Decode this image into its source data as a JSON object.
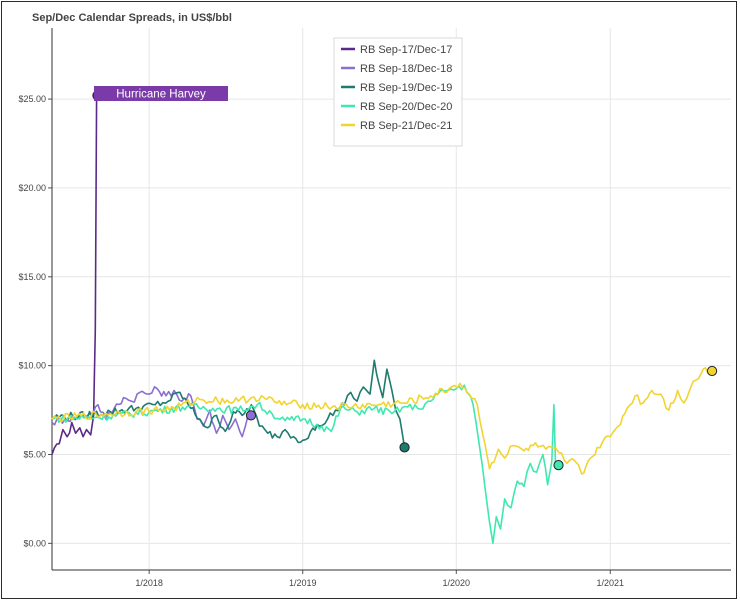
{
  "chart_data": {
    "type": "line",
    "title": "Sep/Dec Calendar Spreads, in US$/bbl",
    "xlabel": "",
    "ylabel": "",
    "ylim": [
      -1.5,
      29
    ],
    "xlim": [
      "2017-05-15",
      "2021-10-15"
    ],
    "yticks": [
      0,
      5,
      10,
      15,
      20,
      25
    ],
    "ytick_labels": [
      "$0.00",
      "$5.00",
      "$10.00",
      "$15.00",
      "$20.00",
      "$25.00"
    ],
    "xticks": [
      "2018-01-01",
      "2019-01-01",
      "2020-01-01",
      "2021-01-01"
    ],
    "xtick_labels": [
      "1/2018",
      "1/2019",
      "1/2020",
      "1/2021"
    ],
    "grid": true,
    "legend_position": "top-center",
    "series": [
      {
        "name": "RB Sep-17/Dec-17",
        "color": "#5b2a86",
        "points": [
          [
            "2017-05-15",
            5.0
          ],
          [
            "2017-06-01",
            5.6
          ],
          [
            "2017-06-10",
            6.4
          ],
          [
            "2017-06-20",
            6.0
          ],
          [
            "2017-07-01",
            6.8
          ],
          [
            "2017-07-10",
            6.2
          ],
          [
            "2017-07-20",
            6.5
          ],
          [
            "2017-07-28",
            6.0
          ],
          [
            "2017-08-05",
            6.4
          ],
          [
            "2017-08-15",
            6.1
          ],
          [
            "2017-08-22",
            7.2
          ],
          [
            "2017-08-26",
            12.0
          ],
          [
            "2017-08-29",
            25.2
          ],
          [
            "2017-08-31",
            25.2
          ]
        ],
        "end_marker": [
          "2017-08-31",
          25.2
        ]
      },
      {
        "name": "RB Sep-18/Dec-18",
        "color": "#8b6fd1",
        "points": [
          [
            "2017-05-15",
            6.8
          ],
          [
            "2017-06-15",
            7.0
          ],
          [
            "2017-07-15",
            7.1
          ],
          [
            "2017-08-15",
            7.3
          ],
          [
            "2017-09-01",
            7.8
          ],
          [
            "2017-09-20",
            7.0
          ],
          [
            "2017-10-10",
            7.6
          ],
          [
            "2017-11-01",
            8.2
          ],
          [
            "2017-11-20",
            8.0
          ],
          [
            "2017-12-10",
            8.5
          ],
          [
            "2018-01-01",
            8.4
          ],
          [
            "2018-01-20",
            8.7
          ],
          [
            "2018-02-10",
            8.3
          ],
          [
            "2018-03-01",
            8.6
          ],
          [
            "2018-03-20",
            8.0
          ],
          [
            "2018-04-10",
            8.3
          ],
          [
            "2018-04-25",
            7.0
          ],
          [
            "2018-05-10",
            6.6
          ],
          [
            "2018-05-25",
            7.5
          ],
          [
            "2018-06-10",
            6.2
          ],
          [
            "2018-06-25",
            7.2
          ],
          [
            "2018-07-10",
            6.4
          ],
          [
            "2018-07-25",
            7.0
          ],
          [
            "2018-08-10",
            6.0
          ],
          [
            "2018-08-25",
            7.3
          ],
          [
            "2018-08-31",
            7.2
          ]
        ],
        "end_marker": [
          "2018-08-31",
          7.2
        ]
      },
      {
        "name": "RB Sep-19/Dec-19",
        "color": "#1f7a70",
        "points": [
          [
            "2017-05-15",
            7.1
          ],
          [
            "2017-08-01",
            7.2
          ],
          [
            "2017-10-01",
            7.4
          ],
          [
            "2017-12-01",
            7.6
          ],
          [
            "2018-01-15",
            7.8
          ],
          [
            "2018-02-15",
            8.0
          ],
          [
            "2018-03-15",
            8.5
          ],
          [
            "2018-04-10",
            7.6
          ],
          [
            "2018-05-01",
            7.0
          ],
          [
            "2018-05-20",
            6.5
          ],
          [
            "2018-06-10",
            7.2
          ],
          [
            "2018-07-01",
            6.3
          ],
          [
            "2018-07-20",
            7.4
          ],
          [
            "2018-08-10",
            7.2
          ],
          [
            "2018-09-01",
            7.8
          ],
          [
            "2018-09-20",
            6.6
          ],
          [
            "2018-10-10",
            6.2
          ],
          [
            "2018-11-01",
            6.0
          ],
          [
            "2018-11-20",
            6.4
          ],
          [
            "2018-12-10",
            6.0
          ],
          [
            "2019-01-01",
            5.8
          ],
          [
            "2019-01-20",
            6.3
          ],
          [
            "2019-02-10",
            6.6
          ],
          [
            "2019-03-01",
            7.0
          ],
          [
            "2019-03-20",
            7.5
          ],
          [
            "2019-04-10",
            7.8
          ],
          [
            "2019-04-25",
            8.5
          ],
          [
            "2019-05-10",
            8.0
          ],
          [
            "2019-05-25",
            8.8
          ],
          [
            "2019-06-10",
            8.4
          ],
          [
            "2019-06-20",
            10.3
          ],
          [
            "2019-07-01",
            9.0
          ],
          [
            "2019-07-10",
            8.2
          ],
          [
            "2019-07-20",
            9.8
          ],
          [
            "2019-08-01",
            8.6
          ],
          [
            "2019-08-10",
            7.5
          ],
          [
            "2019-08-20",
            7.0
          ],
          [
            "2019-08-31",
            5.4
          ]
        ],
        "end_marker": [
          "2019-08-31",
          5.4
        ]
      },
      {
        "name": "RB Sep-20/Dec-20",
        "color": "#3ee8b0",
        "points": [
          [
            "2017-05-15",
            7.0
          ],
          [
            "2017-09-01",
            7.1
          ],
          [
            "2018-01-01",
            7.4
          ],
          [
            "2018-04-01",
            7.7
          ],
          [
            "2018-06-01",
            7.6
          ],
          [
            "2018-08-01",
            7.5
          ],
          [
            "2018-09-15",
            7.8
          ],
          [
            "2018-10-20",
            7.3
          ],
          [
            "2018-11-20",
            6.9
          ],
          [
            "2019-01-01",
            7.0
          ],
          [
            "2019-02-15",
            6.6
          ],
          [
            "2019-03-10",
            6.3
          ],
          [
            "2019-04-01",
            7.6
          ],
          [
            "2019-05-10",
            7.4
          ],
          [
            "2019-06-20",
            7.6
          ],
          [
            "2019-08-01",
            7.3
          ],
          [
            "2019-09-01",
            7.7
          ],
          [
            "2019-10-01",
            7.6
          ],
          [
            "2019-11-01",
            8.0
          ],
          [
            "2019-12-01",
            8.6
          ],
          [
            "2020-01-01",
            8.7
          ],
          [
            "2020-01-20",
            8.9
          ],
          [
            "2020-02-10",
            7.8
          ],
          [
            "2020-02-25",
            5.5
          ],
          [
            "2020-03-10",
            3.0
          ],
          [
            "2020-03-20",
            1.2
          ],
          [
            "2020-03-28",
            0.0
          ],
          [
            "2020-04-05",
            1.5
          ],
          [
            "2020-04-15",
            0.8
          ],
          [
            "2020-04-25",
            2.5
          ],
          [
            "2020-05-10",
            2.0
          ],
          [
            "2020-05-25",
            3.5
          ],
          [
            "2020-06-10",
            3.2
          ],
          [
            "2020-06-25",
            4.5
          ],
          [
            "2020-07-10",
            4.0
          ],
          [
            "2020-07-25",
            5.0
          ],
          [
            "2020-08-05",
            3.3
          ],
          [
            "2020-08-15",
            4.6
          ],
          [
            "2020-08-20",
            7.8
          ],
          [
            "2020-08-24",
            4.2
          ],
          [
            "2020-08-31",
            4.4
          ]
        ],
        "end_marker": [
          "2020-08-31",
          4.4
        ]
      },
      {
        "name": "RB Sep-21/Dec-21",
        "color": "#f2d430",
        "points": [
          [
            "2017-05-15",
            7.0
          ],
          [
            "2017-10-01",
            7.3
          ],
          [
            "2017-12-01",
            7.4
          ],
          [
            "2018-03-01",
            7.6
          ],
          [
            "2018-05-01",
            8.1
          ],
          [
            "2018-08-01",
            8.0
          ],
          [
            "2018-09-01",
            8.2
          ],
          [
            "2018-10-01",
            8.2
          ],
          [
            "2018-11-01",
            7.9
          ],
          [
            "2019-01-01",
            7.8
          ],
          [
            "2019-03-01",
            7.7
          ],
          [
            "2019-05-01",
            7.7
          ],
          [
            "2019-07-01",
            7.8
          ],
          [
            "2019-09-01",
            7.9
          ],
          [
            "2019-11-01",
            8.3
          ],
          [
            "2019-12-15",
            8.7
          ],
          [
            "2020-01-10",
            9.0
          ],
          [
            "2020-02-01",
            8.4
          ],
          [
            "2020-02-20",
            7.8
          ],
          [
            "2020-03-10",
            5.5
          ],
          [
            "2020-03-20",
            4.2
          ],
          [
            "2020-04-10",
            5.3
          ],
          [
            "2020-04-25",
            4.8
          ],
          [
            "2020-05-15",
            5.5
          ],
          [
            "2020-06-10",
            5.2
          ],
          [
            "2020-07-01",
            5.5
          ],
          [
            "2020-08-01",
            5.3
          ],
          [
            "2020-09-01",
            5.1
          ],
          [
            "2020-09-20",
            4.5
          ],
          [
            "2020-10-10",
            4.6
          ],
          [
            "2020-10-25",
            3.9
          ],
          [
            "2020-11-15",
            4.8
          ],
          [
            "2020-12-01",
            5.4
          ],
          [
            "2021-01-01",
            6.0
          ],
          [
            "2021-01-20",
            6.6
          ],
          [
            "2021-02-10",
            7.6
          ],
          [
            "2021-03-01",
            8.3
          ],
          [
            "2021-03-20",
            7.9
          ],
          [
            "2021-04-10",
            8.6
          ],
          [
            "2021-05-01",
            8.4
          ],
          [
            "2021-05-20",
            7.5
          ],
          [
            "2021-06-10",
            8.6
          ],
          [
            "2021-06-25",
            7.9
          ],
          [
            "2021-07-10",
            8.7
          ],
          [
            "2021-07-25",
            9.2
          ],
          [
            "2021-08-10",
            9.8
          ],
          [
            "2021-08-31",
            9.7
          ]
        ],
        "end_marker": [
          "2021-08-31",
          9.7
        ]
      }
    ],
    "annotations": [
      {
        "text": "Hurricane Harvey",
        "background": "#7a3aa8"
      }
    ]
  }
}
